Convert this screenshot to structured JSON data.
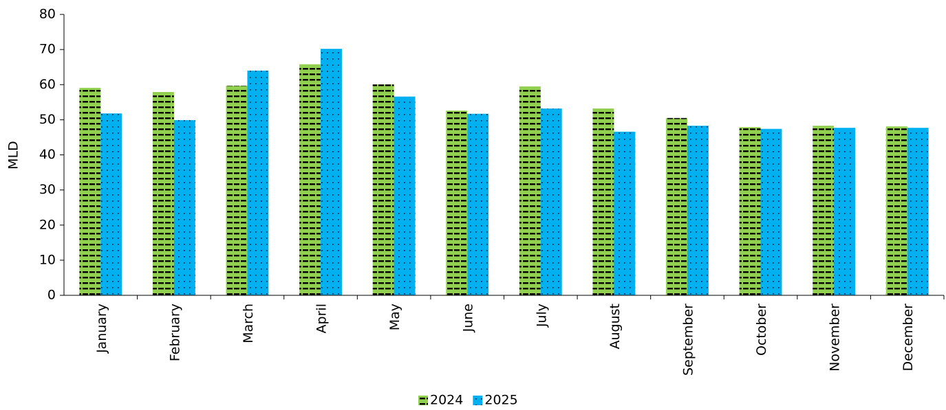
{
  "chart_data": {
    "type": "bar",
    "y_label": "MLD",
    "categories": [
      "January",
      "February",
      "March",
      "April",
      "May",
      "June",
      "July",
      "August",
      "September",
      "October",
      "November",
      "December"
    ],
    "series": [
      {
        "name": "2024",
        "color": "#92d050",
        "values": [
          59.1,
          57.9,
          59.7,
          65.8,
          60.1,
          52.6,
          59.5,
          53.2,
          50.5,
          47.9,
          48.3,
          48.1
        ]
      },
      {
        "name": "2025",
        "color": "#00b0f0",
        "values": [
          51.8,
          49.9,
          64.0,
          70.2,
          56.6,
          51.7,
          53.2,
          46.6,
          48.3,
          47.4,
          47.7,
          47.7
        ]
      }
    ],
    "ylim": [
      0,
      80
    ],
    "yticks": [
      0,
      10,
      20,
      30,
      40,
      50,
      60,
      70,
      80
    ],
    "grid": false,
    "legend": "bottom"
  }
}
